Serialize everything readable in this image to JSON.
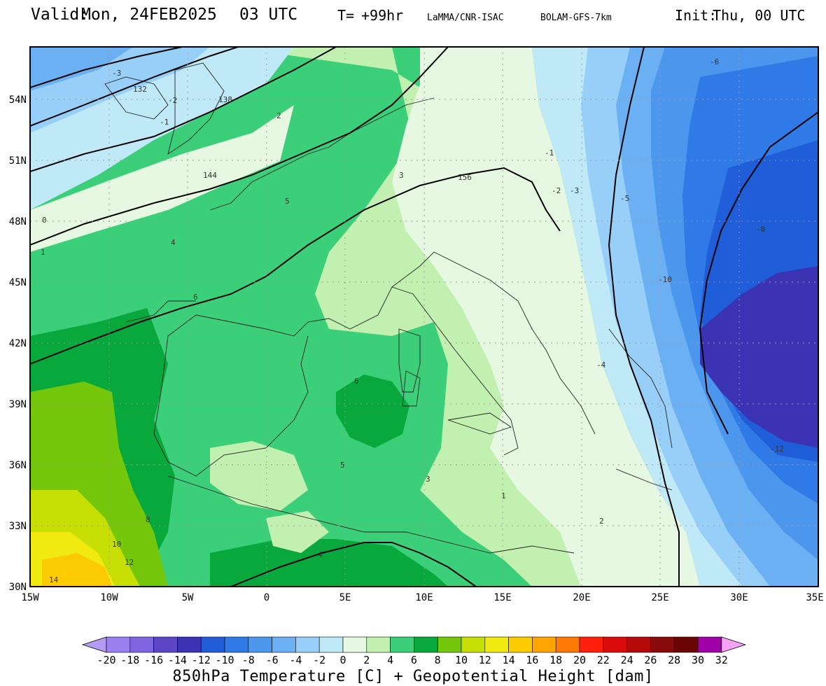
{
  "header": {
    "valid_label": "Valid:",
    "valid_value": "Mon, 24FEB2025",
    "valid_time": "03 UTC",
    "lead_label": "T=",
    "lead_value": "+99hr",
    "source": "LaMMA/CNR-ISAC",
    "model": "BOLAM-GFS-7km",
    "init_label": "Init:",
    "init_value": "Thu, 00 UTC"
  },
  "axes": {
    "lat_labels": [
      "54N",
      "51N",
      "48N",
      "45N",
      "42N",
      "39N",
      "36N",
      "33N",
      "30N"
    ],
    "lon_labels": [
      "15W",
      "10W",
      "5W",
      "0",
      "5E",
      "10E",
      "15E",
      "20E",
      "25E",
      "30E",
      "35E"
    ]
  },
  "map": {
    "contour_labels": [
      "-3",
      "-2",
      "-1",
      "0",
      "2",
      "1",
      "138",
      "132",
      "144",
      "156",
      "3",
      "4",
      "5",
      "6",
      "-1",
      "-2",
      "-3",
      "-5",
      "-6",
      "-8",
      "-10",
      "-12",
      "-4",
      "1",
      "2",
      "3",
      "4",
      "5",
      "6",
      "8",
      "10",
      "12",
      "14"
    ]
  },
  "colorbar": {
    "labels": [
      "-20",
      "-18",
      "-16",
      "-14",
      "-12",
      "-10",
      "-8",
      "-6",
      "-4",
      "-2",
      "0",
      "2",
      "4",
      "6",
      "8",
      "10",
      "12",
      "14",
      "16",
      "18",
      "20",
      "22",
      "24",
      "26",
      "28",
      "30",
      "32"
    ],
    "colors": [
      "#b49cf5",
      "#9a80ef",
      "#7f66e0",
      "#5d45c8",
      "#3c32b4",
      "#1f5ed8",
      "#2f7ae6",
      "#4c96ee",
      "#6cb0f4",
      "#98cff8",
      "#bfe9f6",
      "#e6f8e2",
      "#c2f0b0",
      "#3ccf7a",
      "#08a83c",
      "#74c70a",
      "#c8df06",
      "#f0ea10",
      "#fdcb02",
      "#fea503",
      "#ff7a04",
      "#ff1f0a",
      "#dc0b0b",
      "#b60909",
      "#8a0b0b",
      "#6a0606",
      "#a000a8",
      "#e70ee7",
      "#f9a1f6"
    ],
    "title": "850hPa Temperature [C] + Geopotential Height [dam]"
  }
}
